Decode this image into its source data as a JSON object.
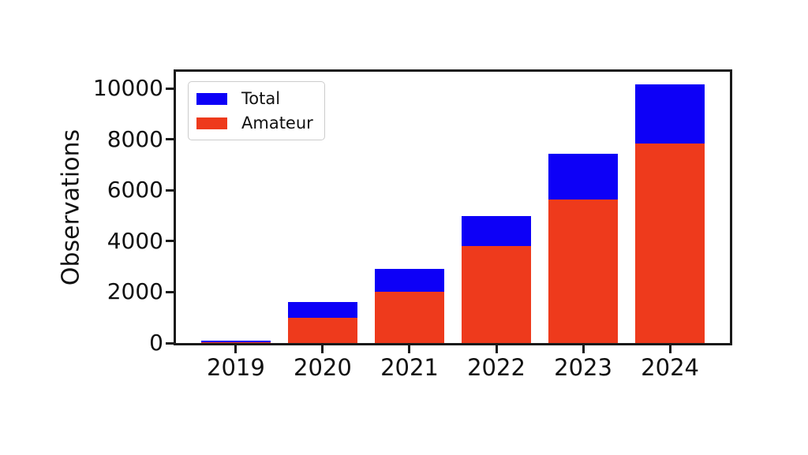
{
  "chart_data": {
    "type": "bar",
    "mode": "overlay",
    "title": "",
    "xlabel": "",
    "ylabel": "Observations",
    "categories": [
      "2019",
      "2020",
      "2021",
      "2022",
      "2023",
      "2024"
    ],
    "series": [
      {
        "name": "Total",
        "color": "#0d00f7",
        "values": [
          80,
          1600,
          2900,
          5000,
          7450,
          10150
        ]
      },
      {
        "name": "Amateur",
        "color": "#ee3a1c",
        "values": [
          30,
          1000,
          2000,
          3800,
          5650,
          7850
        ]
      }
    ],
    "yticks": [
      0,
      2000,
      4000,
      6000,
      8000,
      10000
    ],
    "ylim": [
      0,
      10660
    ],
    "legend_position": "upper left",
    "grid": false,
    "axis_color": "#1a1a1a",
    "background_color": "#ffffff"
  }
}
